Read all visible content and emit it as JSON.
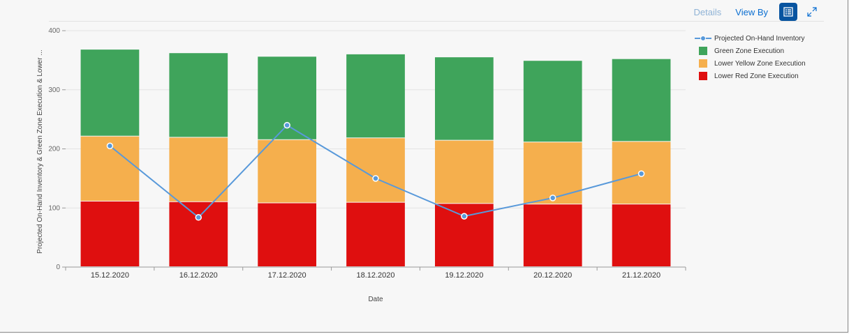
{
  "toolbar": {
    "details_label": "Details",
    "viewby_label": "View By",
    "legend_icon": "legend-icon",
    "fullscreen_icon": "fullscreen-icon"
  },
  "chart_data": {
    "type": "bar",
    "stacked": true,
    "categories": [
      "15.12.2020",
      "16.12.2020",
      "17.12.2020",
      "18.12.2020",
      "19.12.2020",
      "20.12.2020",
      "21.12.2020"
    ],
    "series": [
      {
        "name": "Lower Red Zone Execution",
        "type": "bar",
        "color": "#df0f0f",
        "values": [
          111,
          110,
          108,
          109,
          107,
          106,
          106
        ]
      },
      {
        "name": "Lower Yellow Zone Execution",
        "type": "bar",
        "color": "#f5af4d",
        "values": [
          110,
          109,
          107,
          109,
          107,
          105,
          106
        ]
      },
      {
        "name": "Green Zone Execution",
        "type": "bar",
        "color": "#3fa45b",
        "values": [
          147,
          143,
          141,
          142,
          141,
          138,
          140
        ]
      },
      {
        "name": "Projected On-Hand Inventory",
        "type": "line",
        "color": "#5899da",
        "values": [
          205,
          84,
          240,
          150,
          86,
          117,
          158
        ]
      }
    ],
    "legend_order": [
      "Projected On-Hand Inventory",
      "Green Zone Execution",
      "Lower Yellow Zone Execution",
      "Lower Red Zone Execution"
    ],
    "xlabel": "Date",
    "ylabel": "Projected On-Hand Inventory & Green Zone Execution & Lower ...",
    "ylim": [
      0,
      400
    ],
    "yticks": [
      0,
      100,
      200,
      300,
      400
    ],
    "grid": true,
    "legend_position": "right"
  }
}
